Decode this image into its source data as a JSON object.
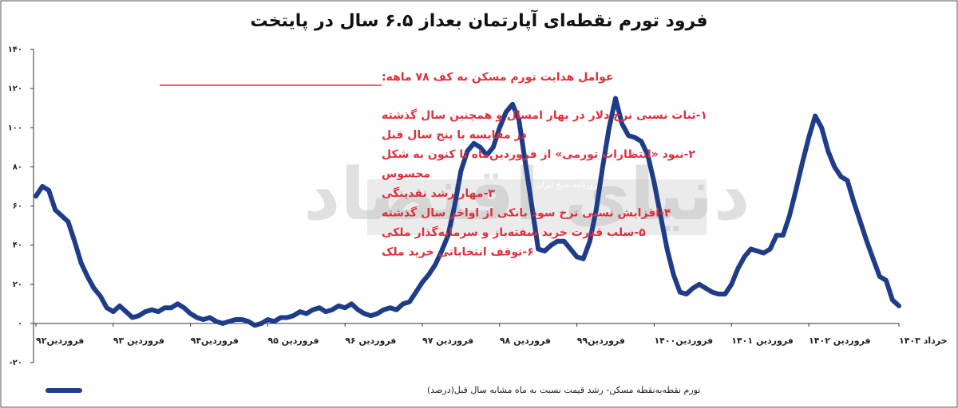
{
  "chart_data": {
    "type": "line",
    "title": "فرود تورم نقطه‌ای آپارتمان بعداز ۶.۵ سال در پایتخت",
    "annotation_title": "عوامل هدایت تورم مسکن به کف ۷۸ ماهه:",
    "annotations": [
      "۱-ثبات نسبی نرخ دلار در بهار امسال و همچنین سال گذشته",
      "در مقایسه با پنج سال قبل",
      "۲-نبود «انتظارات تورمی» از فروردین‌ماه تا کنون به شکل",
      "محسوس",
      "۳-مهار رشد نقدینگی",
      "۴-افزایش نسبی نرخ سود بانکی از اواخر سال گذشته",
      "۵-سلب قدرت خرید سفته‌باز و سرمایه‌گذار ملکی",
      "۶-توقف انتخاباتی خرید ملک"
    ],
    "watermark": [
      "دنیای اقتصاد",
      "روزنامه صبح ایران"
    ],
    "series_name": "تورم نقطه‌به‌نقطه مسکن- رشد قیمت نسبت به ماه مشابه سال قبل(درصد)",
    "color": "#1f3c88",
    "categories": [
      "فروردین۹۲",
      null,
      null,
      null,
      null,
      null,
      null,
      null,
      null,
      null,
      null,
      null,
      "فروردین ۹۳",
      null,
      null,
      null,
      null,
      null,
      null,
      null,
      null,
      null,
      null,
      null,
      "فروردین۹۴",
      null,
      null,
      null,
      null,
      null,
      null,
      null,
      null,
      null,
      null,
      null,
      "فروردین ۹۵",
      null,
      null,
      null,
      null,
      null,
      null,
      null,
      null,
      null,
      null,
      null,
      "فروردین ۹۶",
      null,
      null,
      null,
      null,
      null,
      null,
      null,
      null,
      null,
      null,
      null,
      "فروردین ۹۷",
      null,
      null,
      null,
      null,
      null,
      null,
      null,
      null,
      null,
      null,
      null,
      "فروردین ۹۸",
      null,
      null,
      null,
      null,
      null,
      null,
      null,
      null,
      null,
      null,
      null,
      "فروردین۹۹",
      null,
      null,
      null,
      null,
      null,
      null,
      null,
      null,
      null,
      null,
      null,
      "فروردین۱۴۰۰",
      null,
      null,
      null,
      null,
      null,
      null,
      null,
      null,
      null,
      null,
      null,
      "فروردین ۱۴۰۱",
      null,
      null,
      null,
      null,
      null,
      null,
      null,
      null,
      null,
      null,
      null,
      "فروردین ۱۴۰۲",
      null,
      null,
      null,
      null,
      null,
      null,
      null,
      null,
      null,
      null,
      null,
      null,
      null,
      "خرداد ۱۴۰۳"
    ],
    "values": [
      65,
      70,
      68,
      58,
      55,
      52,
      42,
      31,
      24,
      18,
      14,
      8,
      6,
      9,
      6,
      3,
      4,
      6,
      7,
      6,
      8,
      8,
      10,
      8,
      5,
      3,
      2,
      3,
      1,
      0,
      1,
      2,
      2,
      1,
      -1,
      0,
      2,
      1,
      3,
      3,
      4,
      6,
      5,
      7,
      8,
      6,
      7,
      9,
      8,
      10,
      7,
      5,
      4,
      5,
      7,
      8,
      7,
      10,
      11,
      16,
      21,
      25,
      30,
      37,
      45,
      60,
      78,
      88,
      92,
      90,
      86,
      90,
      100,
      108,
      112,
      104,
      82,
      60,
      38,
      37,
      40,
      42,
      42,
      38,
      34,
      33,
      42,
      58,
      80,
      100,
      115,
      102,
      96,
      95,
      93,
      86,
      72,
      55,
      38,
      25,
      16,
      15,
      18,
      20,
      18,
      16,
      15,
      15,
      20,
      28,
      34,
      38,
      37,
      36,
      38,
      45,
      45,
      55,
      68,
      82,
      95,
      106,
      100,
      88,
      80,
      75,
      73,
      62,
      52,
      42,
      33,
      24,
      22,
      12,
      9
    ],
    "ylim": [
      -20,
      140
    ],
    "yticks": [
      {
        "value": -20,
        "label": "-۲۰"
      },
      {
        "value": 0,
        "label": "۰"
      },
      {
        "value": 20,
        "label": "۲۰"
      },
      {
        "value": 40,
        "label": "۴۰"
      },
      {
        "value": 60,
        "label": "۶۰"
      },
      {
        "value": 80,
        "label": "۸۰"
      },
      {
        "value": 100,
        "label": "۱۰۰"
      },
      {
        "value": 120,
        "label": "۱۲۰"
      },
      {
        "value": 140,
        "label": "۱۴۰"
      }
    ]
  }
}
